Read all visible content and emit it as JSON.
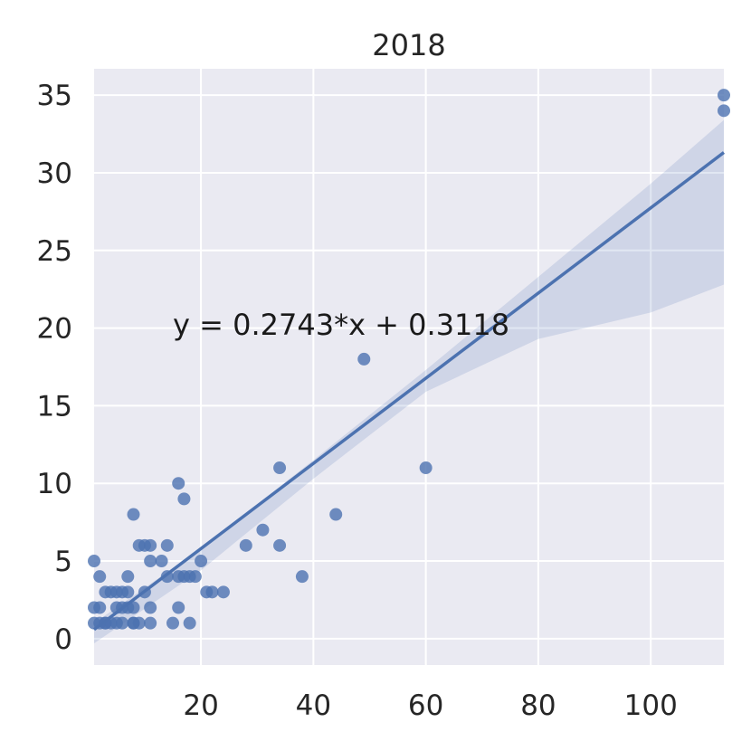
{
  "chart_data": {
    "type": "scatter",
    "title": "2018",
    "xlabel": "",
    "ylabel": "",
    "xlim": [
      1,
      113
    ],
    "ylim": [
      -1.7,
      36.7
    ],
    "xticks": [
      20,
      40,
      60,
      80,
      100
    ],
    "yticks": [
      0,
      5,
      10,
      15,
      20,
      25,
      30,
      35
    ],
    "grid": true,
    "background": "#eaeaf2",
    "point_color": "#4c72b0",
    "line_color": "#4c72b0",
    "band_color": "#4c72b0",
    "points": [
      [
        1,
        1
      ],
      [
        1,
        2
      ],
      [
        1,
        5
      ],
      [
        2,
        1
      ],
      [
        2,
        2
      ],
      [
        2,
        4
      ],
      [
        3,
        1
      ],
      [
        3,
        3
      ],
      [
        3,
        1
      ],
      [
        4,
        1
      ],
      [
        4,
        3
      ],
      [
        5,
        1
      ],
      [
        5,
        2
      ],
      [
        5,
        3
      ],
      [
        6,
        2
      ],
      [
        6,
        3
      ],
      [
        6,
        1
      ],
      [
        7,
        2
      ],
      [
        7,
        3
      ],
      [
        7,
        4
      ],
      [
        8,
        1
      ],
      [
        8,
        2
      ],
      [
        8,
        8
      ],
      [
        8,
        1
      ],
      [
        9,
        1
      ],
      [
        9,
        6
      ],
      [
        10,
        3
      ],
      [
        10,
        6
      ],
      [
        11,
        1
      ],
      [
        11,
        2
      ],
      [
        11,
        5
      ],
      [
        11,
        6
      ],
      [
        13,
        5
      ],
      [
        14,
        4
      ],
      [
        14,
        6
      ],
      [
        15,
        1
      ],
      [
        16,
        2
      ],
      [
        16,
        4
      ],
      [
        16,
        10
      ],
      [
        17,
        4
      ],
      [
        17,
        9
      ],
      [
        18,
        1
      ],
      [
        18,
        4
      ],
      [
        19,
        4
      ],
      [
        20,
        5
      ],
      [
        21,
        3
      ],
      [
        22,
        3
      ],
      [
        24,
        3
      ],
      [
        28,
        6
      ],
      [
        31,
        7
      ],
      [
        34,
        6
      ],
      [
        34,
        11
      ],
      [
        38,
        4
      ],
      [
        44,
        8
      ],
      [
        49,
        18
      ],
      [
        60,
        11
      ],
      [
        113,
        34
      ],
      [
        113,
        35
      ]
    ],
    "regression": {
      "slope": 0.2743,
      "intercept": 0.3118,
      "ci_upper": [
        [
          1,
          1.0
        ],
        [
          20,
          5.8
        ],
        [
          40,
          11.5
        ],
        [
          60,
          17.3
        ],
        [
          80,
          23.3
        ],
        [
          100,
          29.3
        ],
        [
          113,
          33.4
        ]
      ],
      "ci_lower": [
        [
          1,
          -0.3
        ],
        [
          20,
          4.4
        ],
        [
          40,
          10.3
        ],
        [
          60,
          15.9
        ],
        [
          80,
          19.3
        ],
        [
          100,
          21.0
        ],
        [
          113,
          22.8
        ]
      ]
    },
    "annotations": [
      {
        "text": "y = 0.2743*x + 0.3118",
        "x": 15,
        "y": 20.2
      }
    ]
  }
}
